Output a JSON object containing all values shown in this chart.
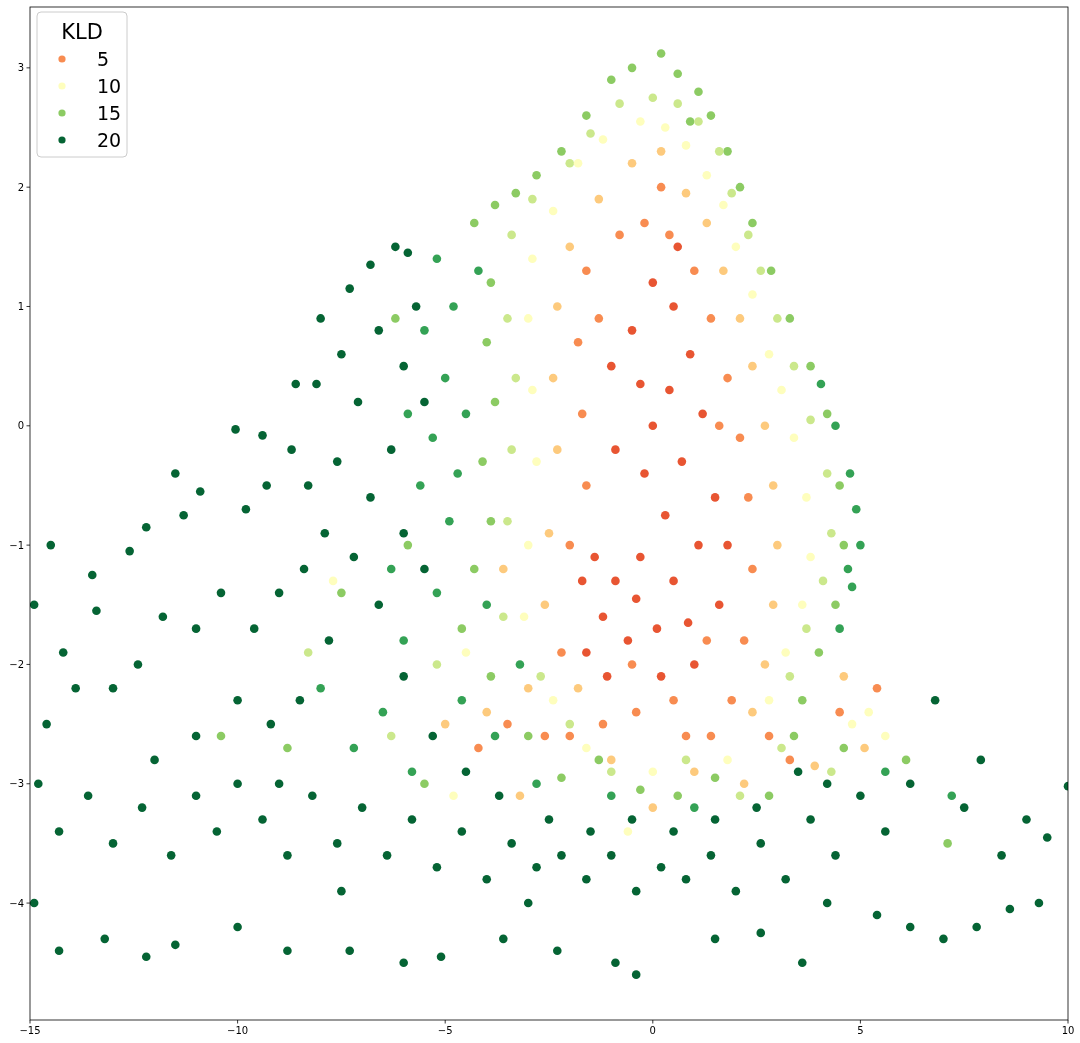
{
  "chart_data": {
    "type": "scatter",
    "legend": "top left",
    "legend_title": "KLD",
    "marker": "circle",
    "xlim": [
      -15,
      10
    ],
    "xticks": [
      {
        "value": -15,
        "label": "−15"
      },
      {
        "value": -10,
        "label": "−10"
      },
      {
        "value": -5,
        "label": "−5"
      },
      0,
      5,
      10
    ],
    "ylim": [
      -4.98,
      3.51
    ],
    "yticks": [
      {
        "value": -4,
        "label": "−4"
      },
      {
        "value": -3,
        "label": "−3"
      },
      {
        "value": -2,
        "label": "−2"
      },
      {
        "value": -1,
        "label": "−1"
      },
      0,
      1,
      2,
      3
    ],
    "series": [
      {
        "color": "#e85532",
        "x": [
          0.0,
          0.5,
          0.9,
          0.4,
          1.2,
          0.7,
          1.5,
          1.1,
          0.5,
          -0.3,
          -0.9,
          -1.2,
          -0.6,
          0.1,
          -0.2,
          -0.9,
          -1.0,
          -0.5,
          1.6,
          1.0,
          -1.6,
          0.2,
          0.0,
          1.8,
          -1.7,
          -1.4,
          -0.4,
          0.3,
          0.85,
          -1.1,
          0.6,
          -0.3
        ],
        "values": [
          1.2,
          1.0,
          0.6,
          0.3,
          0.1,
          -0.3,
          -0.6,
          -1.0,
          -1.3,
          -1.1,
          -1.3,
          -1.6,
          -1.8,
          -1.7,
          -0.4,
          -0.2,
          0.5,
          0.8,
          -1.5,
          -2.0,
          -1.9,
          -2.1,
          0.0,
          -1.0,
          -1.3,
          -1.1,
          -1.45,
          -0.75,
          -1.65,
          -2.1,
          1.5,
          0.35
        ]
      },
      {
        "name": "5",
        "color": "#f88c51",
        "x": [
          -0.8,
          -0.2,
          0.4,
          1.0,
          1.4,
          1.8,
          2.1,
          2.3,
          2.4,
          2.2,
          1.9,
          1.4,
          -1.6,
          -1.8,
          -1.7,
          -1.6,
          -2.0,
          -2.0,
          -1.2,
          -0.4,
          0.5,
          2.8,
          5.4,
          4.5,
          -2.6,
          -3.5,
          1.6,
          1.3,
          -0.5,
          0.2,
          -1.3,
          -2.2,
          0.8,
          -4.2,
          3.3
        ],
        "values": [
          1.6,
          1.7,
          1.6,
          1.3,
          0.9,
          0.4,
          -0.1,
          -0.6,
          -1.2,
          -1.8,
          -2.3,
          -2.6,
          1.3,
          0.7,
          0.1,
          -0.5,
          -1.0,
          -2.6,
          -2.5,
          -2.4,
          -2.3,
          -2.6,
          -2.2,
          -2.4,
          -2.6,
          -2.5,
          0.0,
          -1.8,
          -2.0,
          2.0,
          0.9,
          -1.9,
          -2.6,
          -2.7,
          -2.8
        ]
      },
      {
        "color": "#fdca7d",
        "x": [
          -0.5,
          0.2,
          0.8,
          1.3,
          1.7,
          2.1,
          2.4,
          2.7,
          2.9,
          3.0,
          2.9,
          2.7,
          2.4,
          -1.3,
          -2.0,
          -2.3,
          -2.4,
          -2.3,
          -2.5,
          -2.6,
          -1.8,
          -3.0,
          -1.0,
          1.0,
          2.2,
          3.9,
          5.1,
          -4.0,
          -5.0,
          -3.6,
          -3.2,
          0.0,
          4.6
        ],
        "values": [
          2.2,
          2.3,
          1.95,
          1.7,
          1.3,
          0.9,
          0.5,
          0.0,
          -0.5,
          -1.0,
          -1.5,
          -2.0,
          -2.4,
          1.9,
          1.5,
          1.0,
          0.4,
          -0.2,
          -0.9,
          -1.5,
          -2.2,
          -2.2,
          -2.8,
          -2.9,
          -3.0,
          -2.85,
          -2.7,
          -2.4,
          -2.5,
          -1.2,
          -3.1,
          -3.2,
          -2.1
        ]
      },
      {
        "name": "10",
        "color": "#fefebd",
        "x": [
          -0.3,
          0.3,
          0.8,
          1.3,
          1.7,
          2.0,
          2.4,
          2.8,
          3.1,
          3.4,
          3.7,
          3.8,
          3.6,
          3.2,
          2.8,
          -1.2,
          -1.8,
          -2.4,
          -2.9,
          -3.0,
          -2.9,
          -2.8,
          -3.0,
          -3.1,
          -2.4,
          -1.6,
          0.0,
          1.8,
          5.2,
          5.6,
          4.8,
          -4.5,
          -4.8,
          -7.7,
          -0.6
        ],
        "values": [
          2.55,
          2.5,
          2.35,
          2.1,
          1.85,
          1.5,
          1.1,
          0.6,
          0.3,
          -0.1,
          -0.6,
          -1.1,
          -1.5,
          -1.9,
          -2.3,
          2.4,
          2.2,
          1.8,
          1.4,
          0.9,
          0.3,
          -0.3,
          -1.0,
          -1.6,
          -2.3,
          -2.7,
          -2.9,
          -2.8,
          -2.4,
          -2.6,
          -2.5,
          -1.9,
          -3.1,
          -1.3,
          -3.4
        ]
      },
      {
        "color": "#cbe88c",
        "x": [
          0.0,
          0.6,
          1.1,
          1.6,
          1.9,
          2.3,
          2.6,
          3.0,
          3.4,
          3.8,
          4.2,
          4.3,
          4.1,
          3.7,
          3.3,
          -0.8,
          -1.5,
          -2.0,
          -2.9,
          -3.4,
          -3.5,
          -3.3,
          -3.4,
          -3.5,
          -3.6,
          -2.7,
          -2.0,
          -1.0,
          0.8,
          2.1,
          4.3,
          -5.2,
          3.1,
          -6.3,
          -8.3
        ],
        "values": [
          2.75,
          2.7,
          2.55,
          2.3,
          1.95,
          1.6,
          1.3,
          0.9,
          0.5,
          0.05,
          -0.4,
          -0.9,
          -1.3,
          -1.7,
          -2.1,
          2.7,
          2.45,
          2.2,
          1.9,
          1.6,
          0.9,
          0.4,
          -0.2,
          -0.8,
          -1.6,
          -2.1,
          -2.5,
          -2.9,
          -2.8,
          -3.1,
          -2.9,
          -2.0,
          -2.7,
          -2.6,
          -1.9
        ]
      },
      {
        "name": "15",
        "color": "#8ccb63",
        "x": [
          -1.0,
          -0.5,
          0.2,
          0.6,
          1.1,
          1.4,
          1.8,
          2.1,
          2.4,
          2.85,
          3.3,
          3.8,
          4.2,
          4.5,
          4.6,
          4.4,
          4.0,
          3.6,
          3.4,
          -1.6,
          -2.2,
          -2.8,
          -3.3,
          -3.8,
          -4.3,
          -3.9,
          -4.0,
          -3.8,
          -4.1,
          -3.9,
          -4.3,
          -4.6,
          -3.9,
          -3.0,
          -2.2,
          -1.3,
          -0.3,
          0.6,
          1.5,
          2.8,
          4.6,
          6.1,
          -5.9,
          -6.2,
          -7.5,
          -8.8,
          -10.4,
          -5.5,
          7.1,
          0.9
        ],
        "values": [
          2.9,
          3.0,
          3.12,
          2.95,
          2.8,
          2.6,
          2.3,
          2.0,
          1.7,
          1.3,
          0.9,
          0.5,
          0.1,
          -0.5,
          -1.0,
          -1.5,
          -1.9,
          -2.3,
          -2.6,
          2.6,
          2.3,
          2.1,
          1.95,
          1.85,
          1.7,
          1.2,
          0.7,
          0.2,
          -0.3,
          -0.8,
          -1.2,
          -1.7,
          -2.1,
          -2.6,
          -2.95,
          -2.8,
          -3.05,
          -3.1,
          -2.95,
          -3.1,
          -2.7,
          -2.8,
          -1.0,
          0.9,
          -1.4,
          -2.7,
          -2.6,
          -3.0,
          -3.5,
          2.55
        ]
      },
      {
        "color": "#34a255",
        "x": [
          -5.2,
          -5.5,
          -5.0,
          -5.3,
          -5.6,
          -4.9,
          -5.2,
          -6.0,
          -6.5,
          -7.2,
          -4.6,
          -3.8,
          -4.8,
          -4.5,
          -4.7,
          -5.8,
          -2.8,
          -1.0,
          1.0,
          4.75,
          4.9,
          5.0,
          4.8,
          4.5,
          4.4,
          4.05,
          4.7,
          -4.2,
          -6.3,
          -5.9,
          -4.0,
          -3.2,
          -8.0,
          7.2,
          5.6
        ],
        "values": [
          1.4,
          0.8,
          0.4,
          -0.1,
          -0.5,
          -0.8,
          -1.4,
          -1.8,
          -2.4,
          -2.7,
          -2.3,
          -2.6,
          1.0,
          0.1,
          -0.4,
          -2.9,
          -3.0,
          -3.1,
          -3.2,
          -0.4,
          -0.7,
          -1.0,
          -1.35,
          -1.7,
          0.0,
          0.35,
          -1.2,
          1.3,
          -1.2,
          0.1,
          -1.5,
          -2.0,
          -2.2,
          -3.1,
          -2.9
        ]
      },
      {
        "name": "20",
        "color": "#056434",
        "x": [
          -14.5,
          -14.9,
          -14.2,
          -13.5,
          -13.4,
          -12.6,
          -12.2,
          -11.5,
          -11.3,
          -10.05,
          -9.4,
          -10.9,
          -9.8,
          -9.3,
          -8.7,
          -8.3,
          -8.6,
          -8.1,
          -7.5,
          -8.0,
          -7.3,
          -6.8,
          -6.2,
          -6.6,
          -7.1,
          -7.6,
          -7.9,
          -8.4,
          -9.0,
          -9.6,
          -10.4,
          -11.0,
          -11.8,
          -12.4,
          -13.0,
          -13.9,
          -14.6,
          -14.8,
          -14.3,
          -13.6,
          -13.0,
          -12.3,
          -11.6,
          -11.0,
          -10.5,
          -10.0,
          -9.4,
          -8.8,
          -8.2,
          -7.6,
          -7.0,
          -6.4,
          -5.8,
          -5.2,
          -4.6,
          -4.0,
          -3.4,
          -2.8,
          -2.2,
          -1.6,
          -1.0,
          -0.4,
          0.2,
          0.8,
          1.4,
          2.0,
          2.6,
          3.2,
          3.8,
          4.4,
          5.0,
          5.6,
          6.2,
          6.8,
          7.5,
          7.9,
          8.4,
          9.0,
          9.5,
          9.3,
          8.6,
          7.8,
          7.0,
          6.2,
          5.4,
          4.2,
          3.6,
          2.6,
          1.5,
          -0.4,
          -0.9,
          -2.3,
          -3.6,
          -5.1,
          -6.0,
          -7.3,
          -8.8,
          -10.0,
          -11.5,
          -12.2,
          -13.2,
          -14.3,
          -14.9,
          10.0,
          -6.0,
          -5.7,
          -5.5,
          -6.3,
          -6.8,
          -7.2,
          -6.6,
          -7.8,
          -8.5,
          -9.2,
          -10.0,
          -11.0,
          -12.0,
          -6.0,
          -5.3,
          -4.5,
          -3.7,
          -2.5,
          -1.5,
          -0.5,
          0.5,
          1.5,
          2.5,
          3.5,
          4.2,
          -5.5,
          -6.0,
          -5.9,
          -9.0,
          -7.5,
          -3.0
        ],
        "values": [
          -1.0,
          -1.5,
          -1.9,
          -1.25,
          -1.55,
          -1.05,
          -0.85,
          -0.4,
          -0.75,
          -0.03,
          -0.08,
          -0.55,
          -0.7,
          -0.5,
          -0.2,
          -0.5,
          0.35,
          0.35,
          0.6,
          0.9,
          1.15,
          1.35,
          1.5,
          0.8,
          0.2,
          -0.3,
          -0.9,
          -1.2,
          -1.4,
          -1.7,
          -1.4,
          -1.7,
          -1.6,
          -2.0,
          -2.2,
          -2.2,
          -2.5,
          -3.0,
          -3.4,
          -3.1,
          -3.5,
          -3.2,
          -3.6,
          -3.1,
          -3.4,
          -3.0,
          -3.3,
          -3.6,
          -3.1,
          -3.5,
          -3.2,
          -3.6,
          -3.3,
          -3.7,
          -3.4,
          -3.8,
          -3.5,
          -3.7,
          -3.6,
          -3.8,
          -3.6,
          -3.9,
          -3.7,
          -3.8,
          -3.6,
          -3.9,
          -3.5,
          -3.8,
          -3.3,
          -3.6,
          -3.1,
          -3.4,
          -3.0,
          -2.3,
          -3.2,
          -2.8,
          -3.6,
          -3.3,
          -3.45,
          -4.0,
          -4.05,
          -4.2,
          -4.3,
          -4.2,
          -4.1,
          -4.0,
          -4.5,
          -4.25,
          -4.3,
          -4.6,
          -4.5,
          -4.4,
          -4.3,
          -4.45,
          -4.5,
          -4.4,
          -4.4,
          -4.2,
          -4.35,
          -4.45,
          -4.3,
          -4.4,
          -4.0,
          -3.02,
          0.5,
          1.0,
          0.2,
          -0.2,
          -0.6,
          -1.1,
          -1.5,
          -1.8,
          -2.3,
          -2.5,
          -2.3,
          -2.6,
          -2.8,
          -2.1,
          -2.6,
          -2.9,
          -3.1,
          -3.3,
          -3.4,
          -3.3,
          -3.4,
          -3.3,
          -3.2,
          -2.9,
          -3.0,
          -1.2,
          -0.9,
          1.45,
          -3.0,
          -3.9,
          -4.0
        ]
      }
    ]
  }
}
